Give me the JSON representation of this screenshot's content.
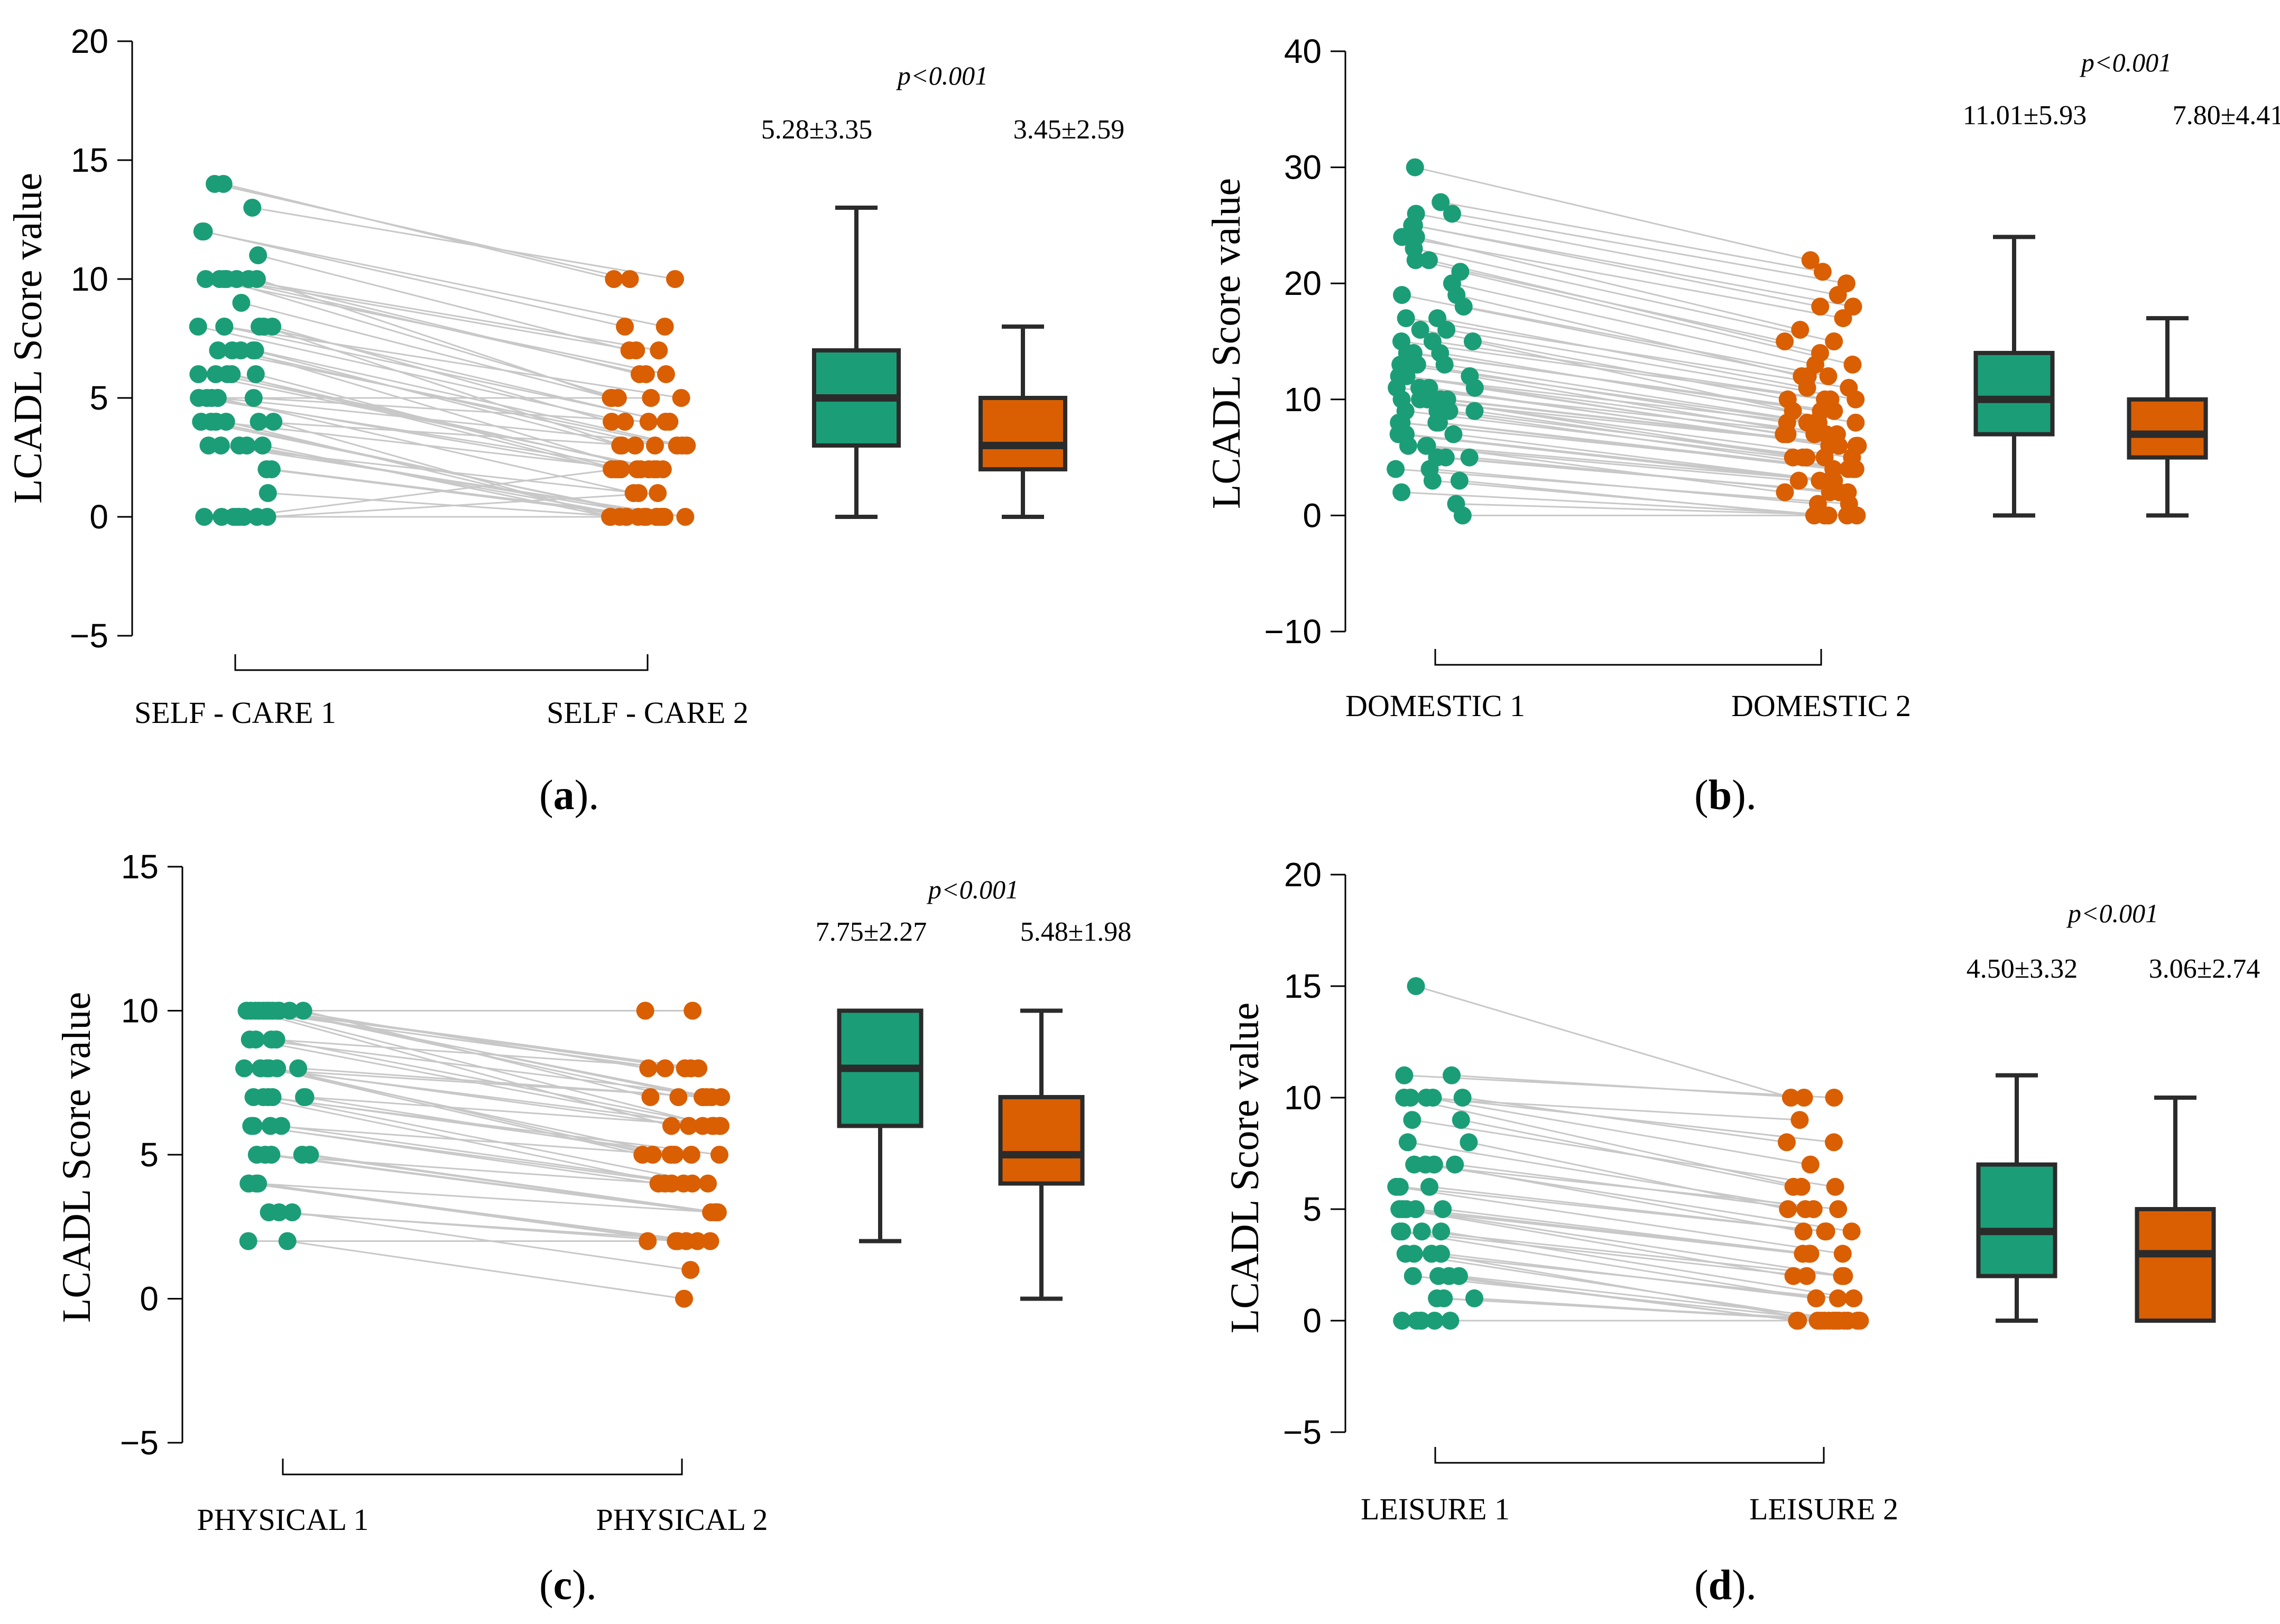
{
  "colors": {
    "group1": "#1b9e77",
    "group2": "#d95f02",
    "line": "#c8c8c8",
    "axis": "#000000",
    "box_edge": "#2b2b2b"
  },
  "chart_data": [
    {
      "panel": "a",
      "caption_letter": "a",
      "caption_suffix": ").",
      "caption_prefix": "(",
      "type": "paired-dot-box",
      "ylabel": "LCADL Score value",
      "ylim": [
        -5,
        20
      ],
      "yticks": [
        -5,
        0,
        5,
        10,
        15,
        20
      ],
      "ytick_labels": [
        "−5",
        "0",
        "5",
        "10",
        "15",
        "20"
      ],
      "categories": [
        "SELF - CARE 1",
        "SELF - CARE 2"
      ],
      "p_value": "p<0.001",
      "summaries": [
        "5.28±3.35",
        "3.45±2.59"
      ],
      "boxes": [
        {
          "name": "SELF - CARE 1",
          "min": 0,
          "q1": 3,
          "median": 5,
          "q3": 7,
          "max": 13
        },
        {
          "name": "SELF - CARE 2",
          "min": 0,
          "q1": 2,
          "median": 3,
          "q3": 5,
          "max": 8
        }
      ],
      "pairs": [
        [
          14,
          10
        ],
        [
          14,
          10
        ],
        [
          13,
          10
        ],
        [
          12,
          8
        ],
        [
          12,
          8
        ],
        [
          11,
          7
        ],
        [
          10,
          7
        ],
        [
          10,
          7
        ],
        [
          10,
          6
        ],
        [
          10,
          6
        ],
        [
          10,
          6
        ],
        [
          10,
          5
        ],
        [
          10,
          5
        ],
        [
          9,
          5
        ],
        [
          8,
          5
        ],
        [
          8,
          4
        ],
        [
          8,
          4
        ],
        [
          8,
          4
        ],
        [
          8,
          4
        ],
        [
          8,
          3
        ],
        [
          7,
          3
        ],
        [
          7,
          3
        ],
        [
          7,
          3
        ],
        [
          7,
          3
        ],
        [
          7,
          2
        ],
        [
          6,
          2
        ],
        [
          6,
          2
        ],
        [
          6,
          2
        ],
        [
          6,
          2
        ],
        [
          6,
          2
        ],
        [
          5,
          3
        ],
        [
          5,
          2
        ],
        [
          5,
          2
        ],
        [
          5,
          1
        ],
        [
          5,
          4
        ],
        [
          5,
          5
        ],
        [
          4,
          0
        ],
        [
          4,
          0
        ],
        [
          4,
          0
        ],
        [
          4,
          0
        ],
        [
          4,
          2
        ],
        [
          4,
          3
        ],
        [
          3,
          0
        ],
        [
          3,
          0
        ],
        [
          3,
          0
        ],
        [
          3,
          0
        ],
        [
          3,
          1
        ],
        [
          2,
          0
        ],
        [
          2,
          0
        ],
        [
          1,
          0
        ],
        [
          0,
          0
        ],
        [
          0,
          0
        ],
        [
          0,
          0
        ],
        [
          0,
          0
        ],
        [
          0,
          0
        ],
        [
          0,
          1
        ],
        [
          0,
          2
        ],
        [
          0,
          0
        ]
      ],
      "seed": 11
    },
    {
      "panel": "b",
      "caption_letter": "b",
      "caption_suffix": ").",
      "caption_prefix": "(",
      "type": "paired-dot-box",
      "ylabel": "LCADL Score value",
      "ylim": [
        -10,
        40
      ],
      "yticks": [
        -10,
        0,
        10,
        20,
        30,
        40
      ],
      "ytick_labels": [
        "−10",
        "0",
        "10",
        "20",
        "30",
        "40"
      ],
      "categories": [
        "DOMESTIC 1",
        "DOMESTIC 2"
      ],
      "p_value": "p<0.001",
      "summaries": [
        "11.01±5.93",
        "7.80±4.41"
      ],
      "boxes": [
        {
          "name": "DOMESTIC 1",
          "min": 0,
          "q1": 7,
          "median": 10,
          "q3": 14,
          "max": 24
        },
        {
          "name": "DOMESTIC 2",
          "min": 0,
          "q1": 5,
          "median": 7,
          "q3": 10,
          "max": 17
        }
      ],
      "pairs": [
        [
          30,
          22
        ],
        [
          27,
          21
        ],
        [
          26,
          20
        ],
        [
          26,
          19
        ],
        [
          25,
          18
        ],
        [
          25,
          18
        ],
        [
          24,
          17
        ],
        [
          24,
          16
        ],
        [
          23,
          15
        ],
        [
          22,
          15
        ],
        [
          22,
          14
        ],
        [
          21,
          13
        ],
        [
          20,
          13
        ],
        [
          19,
          12
        ],
        [
          19,
          12
        ],
        [
          18,
          12
        ],
        [
          17,
          11
        ],
        [
          17,
          11
        ],
        [
          16,
          10
        ],
        [
          16,
          10
        ],
        [
          15,
          10
        ],
        [
          15,
          10
        ],
        [
          15,
          9
        ],
        [
          14,
          9
        ],
        [
          14,
          9
        ],
        [
          14,
          8
        ],
        [
          13,
          8
        ],
        [
          13,
          8
        ],
        [
          13,
          8
        ],
        [
          12,
          8
        ],
        [
          12,
          7
        ],
        [
          12,
          7
        ],
        [
          12,
          7
        ],
        [
          11,
          7
        ],
        [
          11,
          7
        ],
        [
          11,
          6
        ],
        [
          11,
          6
        ],
        [
          10,
          6
        ],
        [
          10,
          6
        ],
        [
          10,
          6
        ],
        [
          10,
          5
        ],
        [
          10,
          5
        ],
        [
          9,
          5
        ],
        [
          9,
          5
        ],
        [
          9,
          5
        ],
        [
          9,
          4
        ],
        [
          8,
          4
        ],
        [
          8,
          4
        ],
        [
          8,
          4
        ],
        [
          8,
          4
        ],
        [
          7,
          3
        ],
        [
          7,
          3
        ],
        [
          7,
          3
        ],
        [
          6,
          3
        ],
        [
          6,
          3
        ],
        [
          6,
          2
        ],
        [
          5,
          2
        ],
        [
          5,
          2
        ],
        [
          5,
          2
        ],
        [
          4,
          1
        ],
        [
          4,
          1
        ],
        [
          3,
          0
        ],
        [
          3,
          0
        ],
        [
          2,
          0
        ],
        [
          1,
          0
        ],
        [
          0,
          0
        ]
      ],
      "seed": 23
    },
    {
      "panel": "c",
      "caption_letter": "c",
      "caption_suffix": ").",
      "caption_prefix": "(",
      "type": "paired-dot-box",
      "ylabel": "LCADL Score value",
      "ylim": [
        -5,
        15
      ],
      "yticks": [
        -5,
        0,
        5,
        10,
        15
      ],
      "ytick_labels": [
        "−5",
        "0",
        "5",
        "10",
        "15"
      ],
      "categories": [
        "PHYSICAL 1",
        "PHYSICAL 2"
      ],
      "p_value": "p<0.001",
      "summaries": [
        "7.75±2.27",
        "5.48±1.98"
      ],
      "boxes": [
        {
          "name": "PHYSICAL 1",
          "min": 2,
          "q1": 6,
          "median": 8,
          "q3": 10,
          "max": 10
        },
        {
          "name": "PHYSICAL 2",
          "min": 0,
          "q1": 4,
          "median": 5,
          "q3": 7,
          "max": 10
        }
      ],
      "pairs": [
        [
          10,
          10
        ],
        [
          10,
          10
        ],
        [
          10,
          8
        ],
        [
          10,
          8
        ],
        [
          10,
          8
        ],
        [
          10,
          8
        ],
        [
          10,
          7
        ],
        [
          10,
          7
        ],
        [
          10,
          7
        ],
        [
          10,
          7
        ],
        [
          10,
          6
        ],
        [
          10,
          6
        ],
        [
          9,
          8
        ],
        [
          9,
          7
        ],
        [
          9,
          6
        ],
        [
          9,
          6
        ],
        [
          8,
          7
        ],
        [
          8,
          7
        ],
        [
          8,
          6
        ],
        [
          8,
          6
        ],
        [
          8,
          5
        ],
        [
          8,
          5
        ],
        [
          8,
          5
        ],
        [
          7,
          6
        ],
        [
          7,
          5
        ],
        [
          7,
          5
        ],
        [
          7,
          5
        ],
        [
          7,
          4
        ],
        [
          7,
          4
        ],
        [
          6,
          5
        ],
        [
          6,
          4
        ],
        [
          6,
          4
        ],
        [
          6,
          4
        ],
        [
          5,
          4
        ],
        [
          5,
          3
        ],
        [
          5,
          3
        ],
        [
          5,
          3
        ],
        [
          5,
          3
        ],
        [
          4,
          3
        ],
        [
          4,
          2
        ],
        [
          4,
          2
        ],
        [
          4,
          2
        ],
        [
          3,
          2
        ],
        [
          3,
          2
        ],
        [
          3,
          1
        ],
        [
          2,
          0
        ],
        [
          2,
          2
        ]
      ],
      "seed": 37
    },
    {
      "panel": "d",
      "caption_letter": "d",
      "caption_suffix": ").",
      "caption_prefix": "(",
      "type": "paired-dot-box",
      "ylabel": "LCADL Score value",
      "ylim": [
        -5,
        20
      ],
      "yticks": [
        -5,
        0,
        5,
        10,
        15,
        20
      ],
      "ytick_labels": [
        "−5",
        "0",
        "5",
        "10",
        "15",
        "20"
      ],
      "categories": [
        "LEISURE 1",
        "LEISURE 2"
      ],
      "p_value": "p<0.001",
      "summaries": [
        "4.50±3.32",
        "3.06±2.74"
      ],
      "boxes": [
        {
          "name": "LEISURE 1",
          "min": 0,
          "q1": 2,
          "median": 4,
          "q3": 7,
          "max": 11
        },
        {
          "name": "LEISURE 2",
          "min": 0,
          "q1": 0,
          "median": 3,
          "q3": 5,
          "max": 10
        }
      ],
      "pairs": [
        [
          15,
          10
        ],
        [
          11,
          10
        ],
        [
          11,
          10
        ],
        [
          10,
          9
        ],
        [
          10,
          8
        ],
        [
          10,
          8
        ],
        [
          10,
          7
        ],
        [
          10,
          6
        ],
        [
          9,
          6
        ],
        [
          9,
          6
        ],
        [
          8,
          5
        ],
        [
          8,
          5
        ],
        [
          7,
          5
        ],
        [
          7,
          5
        ],
        [
          7,
          4
        ],
        [
          7,
          4
        ],
        [
          6,
          4
        ],
        [
          6,
          4
        ],
        [
          6,
          3
        ],
        [
          5,
          3
        ],
        [
          5,
          3
        ],
        [
          5,
          3
        ],
        [
          5,
          2
        ],
        [
          5,
          2
        ],
        [
          4,
          2
        ],
        [
          4,
          2
        ],
        [
          4,
          1
        ],
        [
          4,
          1
        ],
        [
          3,
          1
        ],
        [
          3,
          1
        ],
        [
          3,
          0
        ],
        [
          3,
          0
        ],
        [
          2,
          0
        ],
        [
          2,
          0
        ],
        [
          2,
          0
        ],
        [
          2,
          0
        ],
        [
          1,
          0
        ],
        [
          1,
          0
        ],
        [
          1,
          0
        ],
        [
          0,
          0
        ],
        [
          0,
          0
        ],
        [
          0,
          0
        ],
        [
          0,
          0
        ],
        [
          0,
          0
        ],
        [
          0,
          0
        ]
      ],
      "seed": 53
    }
  ]
}
